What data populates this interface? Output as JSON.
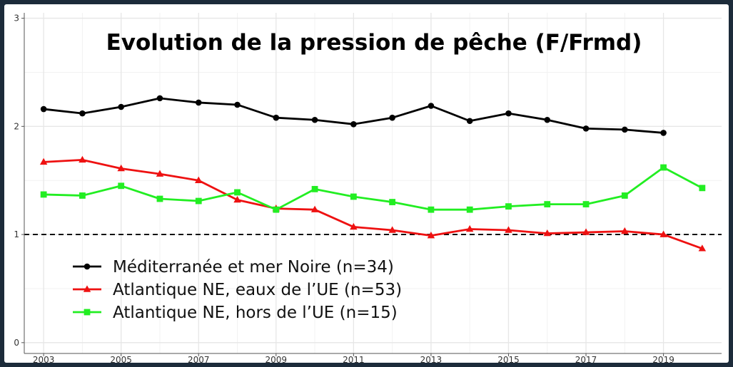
{
  "chart_data": {
    "type": "line",
    "title": "Evolution de la pression de pêche (F/Frmd)",
    "xlabel": "",
    "ylabel": "",
    "xlim": [
      2002.5,
      2020.5
    ],
    "ylim": [
      -0.1,
      3.05
    ],
    "xticks": [
      2003,
      2005,
      2007,
      2009,
      2011,
      2013,
      2015,
      2017,
      2019
    ],
    "xtick_labels": [
      "2003",
      "2005",
      "2007",
      "2009",
      "2011",
      "2013",
      "2015",
      "2017",
      "2019"
    ],
    "yticks": [
      0,
      1,
      2,
      3
    ],
    "ytick_labels": [
      "0",
      "1",
      "2",
      "3"
    ],
    "grid": true,
    "legend_position": "bottom-left",
    "reference_line": {
      "y": 1,
      "style": "dashed",
      "color": "#000000"
    },
    "series": [
      {
        "name": "Méditerranée et mer Noire  (n=34)",
        "color": "#000000",
        "marker": "circle",
        "x": [
          2003,
          2004,
          2005,
          2006,
          2007,
          2008,
          2009,
          2010,
          2011,
          2012,
          2013,
          2014,
          2015,
          2016,
          2017,
          2018,
          2019
        ],
        "values": [
          2.16,
          2.12,
          2.18,
          2.26,
          2.22,
          2.2,
          2.08,
          2.06,
          2.02,
          2.08,
          2.19,
          2.05,
          2.12,
          2.06,
          1.98,
          1.97,
          1.94
        ]
      },
      {
        "name": "Atlantique NE, eaux de l’UE (n=53)",
        "color": "#ee1111",
        "marker": "triangle",
        "x": [
          2003,
          2004,
          2005,
          2006,
          2007,
          2008,
          2009,
          2010,
          2011,
          2012,
          2013,
          2014,
          2015,
          2016,
          2017,
          2018,
          2019,
          2020
        ],
        "values": [
          1.67,
          1.69,
          1.61,
          1.56,
          1.5,
          1.32,
          1.24,
          1.23,
          1.07,
          1.04,
          0.99,
          1.05,
          1.04,
          1.01,
          1.02,
          1.03,
          1.0,
          0.87
        ]
      },
      {
        "name": "Atlantique NE, hors de l’UE (n=15)",
        "color": "#22ee22",
        "marker": "square",
        "x": [
          2003,
          2004,
          2005,
          2006,
          2007,
          2008,
          2009,
          2010,
          2011,
          2012,
          2013,
          2014,
          2015,
          2016,
          2017,
          2018,
          2019,
          2020
        ],
        "values": [
          1.37,
          1.36,
          1.45,
          1.33,
          1.31,
          1.39,
          1.23,
          1.42,
          1.35,
          1.3,
          1.23,
          1.23,
          1.26,
          1.28,
          1.28,
          1.36,
          1.62,
          1.43
        ]
      }
    ]
  }
}
